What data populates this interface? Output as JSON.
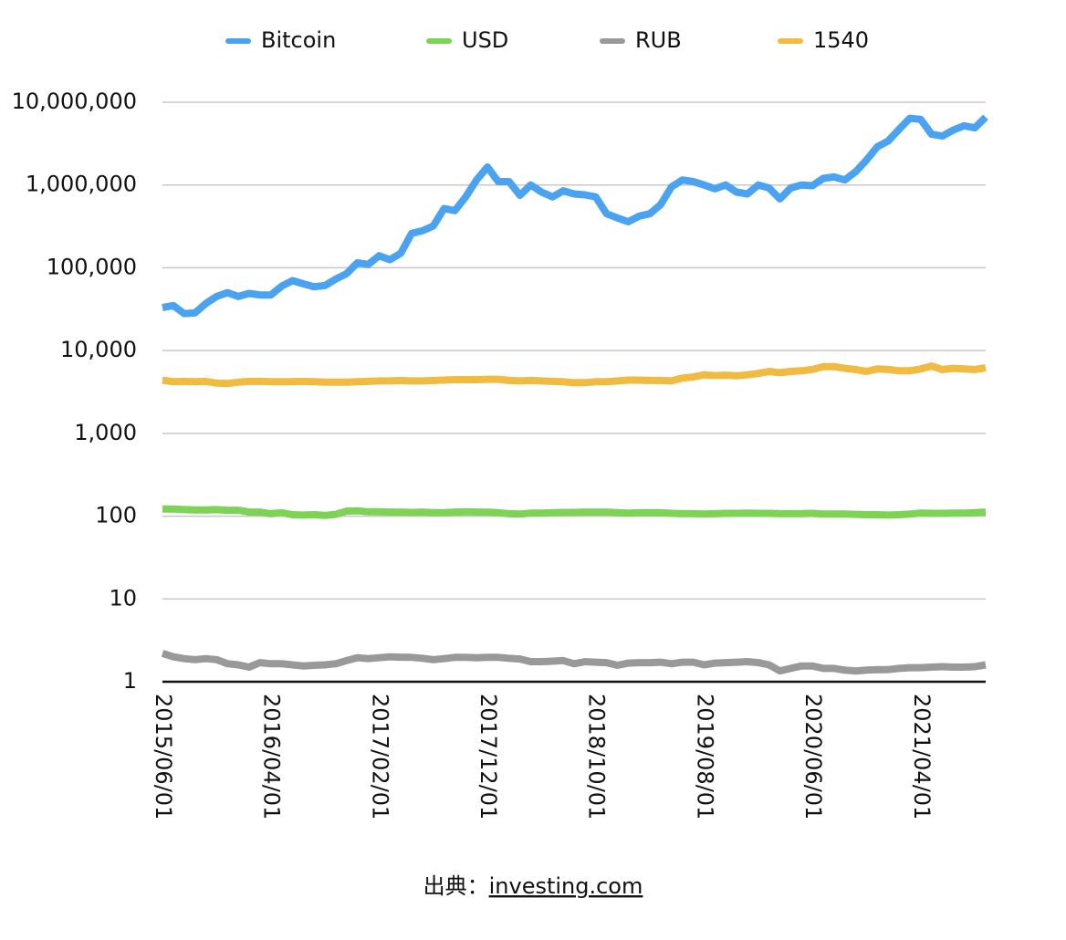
{
  "chart_data": {
    "type": "line",
    "log_y": true,
    "grid": true,
    "legend": "top",
    "categories": [
      "2015/06/01",
      null,
      null,
      null,
      null,
      null,
      null,
      null,
      null,
      null,
      "2016/04/01",
      null,
      null,
      null,
      null,
      null,
      null,
      null,
      null,
      null,
      "2017/02/01",
      null,
      null,
      null,
      null,
      null,
      null,
      null,
      null,
      null,
      "2017/12/01",
      null,
      null,
      null,
      null,
      null,
      null,
      null,
      null,
      null,
      "2018/10/01",
      null,
      null,
      null,
      null,
      null,
      null,
      null,
      null,
      null,
      "2019/08/01",
      null,
      null,
      null,
      null,
      null,
      null,
      null,
      null,
      null,
      "2020/06/01",
      null,
      null,
      null,
      null,
      null,
      null,
      null,
      null,
      null,
      "2021/04/01",
      null,
      null,
      null,
      null,
      null,
      null
    ],
    "series": [
      {
        "name": "Bitcoin",
        "color": "#4aa3f0",
        "values": [
          33000,
          35000,
          28000,
          28500,
          37000,
          45000,
          50000,
          45000,
          49000,
          47000,
          47000,
          60000,
          70000,
          64000,
          59000,
          61000,
          73000,
          85000,
          115000,
          110000,
          140000,
          125000,
          150000,
          260000,
          280000,
          320000,
          520000,
          490000,
          720000,
          1150000,
          1650000,
          1100000,
          1100000,
          750000,
          1000000,
          820000,
          720000,
          850000,
          780000,
          760000,
          720000,
          450000,
          400000,
          360000,
          420000,
          450000,
          580000,
          950000,
          1150000,
          1100000,
          1000000,
          900000,
          1000000,
          820000,
          780000,
          1000000,
          920000,
          680000,
          920000,
          1000000,
          980000,
          1200000,
          1250000,
          1150000,
          1450000,
          2000000,
          2900000,
          3400000,
          4700000,
          6400000,
          6200000,
          4100000,
          3900000,
          4600000,
          5200000,
          4900000,
          6600000
        ]
      },
      {
        "name": "USD",
        "color": "#7ed357",
        "values": [
          122,
          122,
          120,
          119,
          119,
          120,
          118,
          118,
          112,
          112,
          107,
          110,
          104,
          103,
          104,
          102,
          105,
          115,
          116,
          113,
          113,
          112,
          112,
          111,
          112,
          110,
          110,
          112,
          113,
          112,
          112,
          110,
          107,
          106,
          109,
          109,
          110,
          111,
          111,
          112,
          112,
          112,
          110,
          109,
          110,
          110,
          110,
          108,
          107,
          107,
          106,
          107,
          108,
          108,
          109,
          108,
          108,
          107,
          107,
          107,
          108,
          106,
          106,
          106,
          105,
          104,
          104,
          103,
          104,
          106,
          109,
          108,
          108,
          109,
          109,
          110,
          112
        ]
      },
      {
        "name": "RUB",
        "color": "#999999",
        "values": [
          2.2,
          2.0,
          1.9,
          1.85,
          1.9,
          1.85,
          1.65,
          1.6,
          1.5,
          1.7,
          1.65,
          1.65,
          1.6,
          1.55,
          1.58,
          1.6,
          1.65,
          1.8,
          1.95,
          1.9,
          1.95,
          2.0,
          1.98,
          1.97,
          1.92,
          1.85,
          1.9,
          1.97,
          1.97,
          1.95,
          1.97,
          1.97,
          1.92,
          1.88,
          1.75,
          1.75,
          1.77,
          1.8,
          1.65,
          1.75,
          1.72,
          1.7,
          1.58,
          1.68,
          1.7,
          1.7,
          1.72,
          1.65,
          1.72,
          1.72,
          1.6,
          1.68,
          1.7,
          1.72,
          1.75,
          1.7,
          1.6,
          1.35,
          1.45,
          1.55,
          1.55,
          1.45,
          1.45,
          1.38,
          1.35,
          1.38,
          1.4,
          1.4,
          1.45,
          1.48,
          1.48,
          1.5,
          1.52,
          1.5,
          1.5,
          1.52,
          1.6
        ]
      },
      {
        "name": "1540",
        "color": "#f0bb40",
        "values": [
          4400,
          4200,
          4250,
          4200,
          4250,
          4050,
          4000,
          4150,
          4250,
          4250,
          4200,
          4200,
          4200,
          4250,
          4200,
          4150,
          4150,
          4150,
          4200,
          4250,
          4300,
          4300,
          4350,
          4300,
          4300,
          4350,
          4400,
          4450,
          4450,
          4450,
          4500,
          4500,
          4350,
          4300,
          4350,
          4300,
          4250,
          4200,
          4100,
          4100,
          4200,
          4200,
          4300,
          4400,
          4400,
          4350,
          4350,
          4300,
          4650,
          4800,
          5100,
          5000,
          5050,
          4950,
          5100,
          5300,
          5600,
          5400,
          5600,
          5700,
          5900,
          6400,
          6400,
          6100,
          5900,
          5600,
          6000,
          5900,
          5700,
          5700,
          6000,
          6500,
          5900,
          6100,
          6000,
          5900,
          6200
        ]
      }
    ],
    "ylim": [
      1,
      10000000
    ],
    "yticks": [
      1,
      10,
      100,
      {
        "value": 1000,
        "label": "1,000"
      },
      {
        "value": 10000,
        "label": "10,000"
      },
      {
        "value": 100000,
        "label": "100,000"
      },
      {
        "value": 1000000,
        "label": "1,000,000"
      },
      {
        "value": 10000000,
        "label": "10,000,000"
      }
    ],
    "source_label": "出典：",
    "source_link": "investing.com"
  }
}
